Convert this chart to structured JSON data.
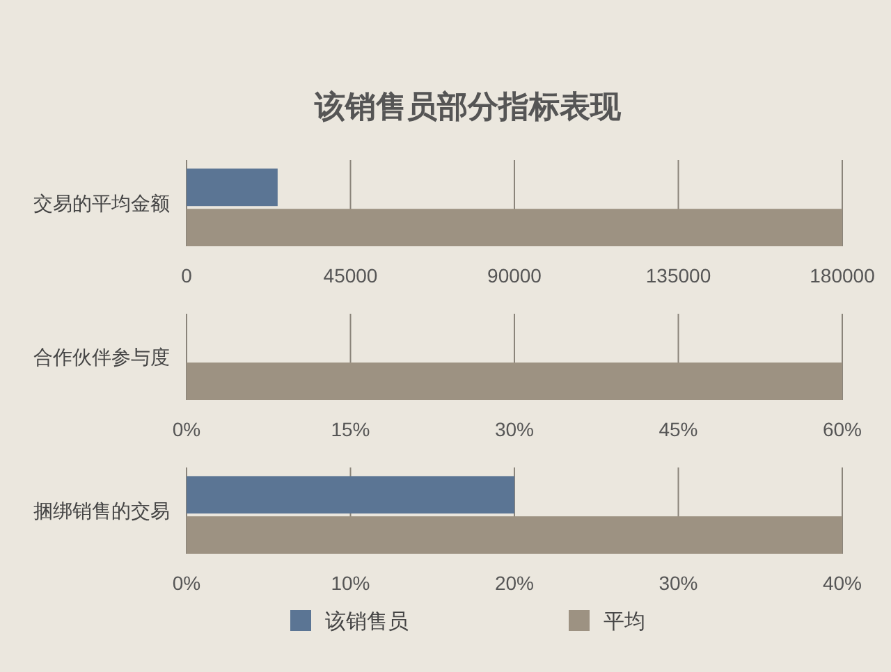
{
  "chart_data": [
    {
      "type": "bar",
      "orientation": "horizontal",
      "title": "该销售员部分指标表现",
      "categories": [
        "交易的平均金额"
      ],
      "series": [
        {
          "color": "#5b7594",
          "values": [
            25000
          ]
        },
        {
          "color": "#9d9282",
          "values": [
            180000
          ]
        }
      ],
      "xlim": [
        0,
        180000
      ],
      "xticks": [
        0,
        45000,
        90000,
        135000,
        180000
      ],
      "grid": "x"
    },
    {
      "type": "bar",
      "orientation": "horizontal",
      "categories": [
        "合作伙伴参与度"
      ],
      "series": [
        {
          "values": [
            null
          ]
        },
        {
          "color": "#9d9282",
          "values": [
            60
          ]
        }
      ],
      "xlim": [
        0,
        60
      ],
      "xticks": [
        {
          "value": 0,
          "label": "0%"
        },
        {
          "value": 15,
          "label": "15%"
        },
        {
          "value": 30,
          "label": "30%"
        },
        {
          "value": 45,
          "label": "45%"
        },
        {
          "value": 60,
          "label": "60%"
        }
      ],
      "grid": "x"
    },
    {
      "type": "bar",
      "orientation": "horizontal",
      "categories": [
        "捆绑销售的交易"
      ],
      "series": [
        {
          "name": "该销售员",
          "color": "#5b7594",
          "values": [
            20
          ]
        },
        {
          "name": "平均",
          "color": "#9d9282",
          "values": [
            40
          ]
        }
      ],
      "xlim": [
        0,
        40
      ],
      "xticks": [
        {
          "value": 0,
          "label": "0%"
        },
        {
          "value": 10,
          "label": "10%"
        },
        {
          "value": 20,
          "label": "20%"
        },
        {
          "value": 30,
          "label": "30%"
        },
        {
          "value": 40,
          "label": "40%"
        }
      ],
      "grid": "x",
      "legend": "bottom"
    }
  ]
}
